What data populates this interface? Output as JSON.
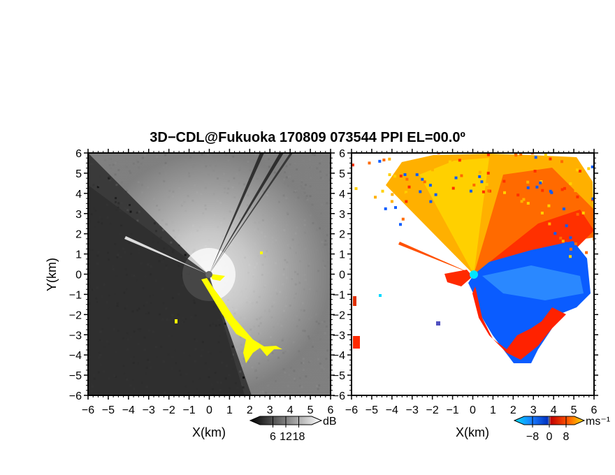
{
  "title": "3D−CDL@Fukuoka 170809 073544 PPI EL=00.0º",
  "chart_data": [
    {
      "type": "heatmap",
      "name": "reflectivity-ppi",
      "xlabel": "X(km)",
      "ylabel": "Y(km)",
      "xlim": [
        -6,
        6
      ],
      "ylim": [
        -6,
        6
      ],
      "xticks": [
        "−6",
        "−5",
        "−4",
        "−3",
        "−2",
        "−1",
        "0",
        "1",
        "2",
        "3",
        "4",
        "5",
        "6"
      ],
      "yticks": [
        "−6",
        "−5",
        "−4",
        "−3",
        "−2",
        "−1",
        "0",
        "1",
        "2",
        "3",
        "4",
        "5",
        "6"
      ],
      "colormap": "grayscale",
      "colorbar": {
        "unit": "dB",
        "ticks": [
          "6",
          "12",
          "18"
        ],
        "range": [
          0,
          24
        ]
      },
      "overlay_color": "#ffff00",
      "background_color": "#3a3a3a",
      "radar_site": [
        0,
        0
      ]
    },
    {
      "type": "heatmap",
      "name": "doppler-velocity-ppi",
      "xlabel": "X(km)",
      "ylabel": "",
      "xlim": [
        -6,
        6
      ],
      "ylim": [
        -6,
        6
      ],
      "xticks": [
        "−6",
        "−5",
        "−4",
        "−3",
        "−2",
        "−1",
        "0",
        "1",
        "2",
        "3",
        "4",
        "5",
        "6"
      ],
      "yticks": [
        "−6",
        "−5",
        "−4",
        "−3",
        "−2",
        "−1",
        "0",
        "1",
        "2",
        "3",
        "4",
        "5",
        "6"
      ],
      "colormap": "cyan-blue-white-red-orange-yellow",
      "colorbar": {
        "unit": "ms⁻¹",
        "ticks": [
          "−8",
          "0",
          "8"
        ],
        "range": [
          -12,
          12
        ]
      },
      "receding_colors": [
        "#ff2a00",
        "#ff9a00",
        "#ffd400"
      ],
      "approaching_colors": [
        "#0050ff",
        "#2a7dff"
      ],
      "radar_site": [
        0,
        0
      ],
      "radar_site_color": "#00e5ff"
    }
  ]
}
